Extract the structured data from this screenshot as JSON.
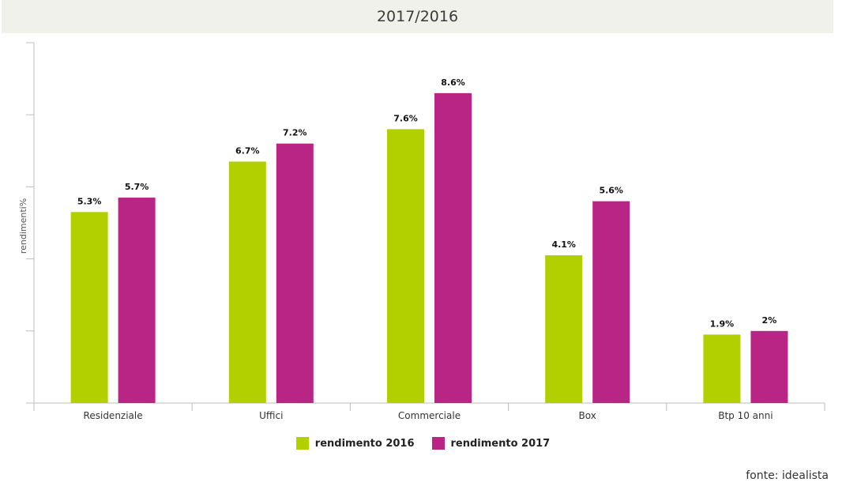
{
  "header": {
    "title": "2017/2016"
  },
  "source": "fonte: idealista",
  "colors": {
    "s2016": "#b2d000",
    "s2017": "#b82584",
    "axis": "#bdbdbd"
  },
  "chart_data": {
    "type": "bar",
    "title": "2017/2016",
    "ylabel": "rendimenti%",
    "xlabel": "",
    "ylim": [
      0,
      10
    ],
    "grid": false,
    "legend_position": "bottom-center",
    "categories": [
      "Residenziale",
      "Uffici",
      "Commerciale",
      "Box",
      "Btp 10 anni"
    ],
    "series": [
      {
        "name": "rendimento 2016",
        "values": [
          5.3,
          6.7,
          7.6,
          4.1,
          1.9
        ],
        "labels": [
          "5.3%",
          "6.7%",
          "7.6%",
          "4.1%",
          "1.9%"
        ]
      },
      {
        "name": "rendimento 2017",
        "values": [
          5.7,
          7.2,
          8.6,
          5.6,
          2.0
        ],
        "labels": [
          "5.7%",
          "7.2%",
          "8.6%",
          "5.6%",
          "2%"
        ]
      }
    ]
  }
}
